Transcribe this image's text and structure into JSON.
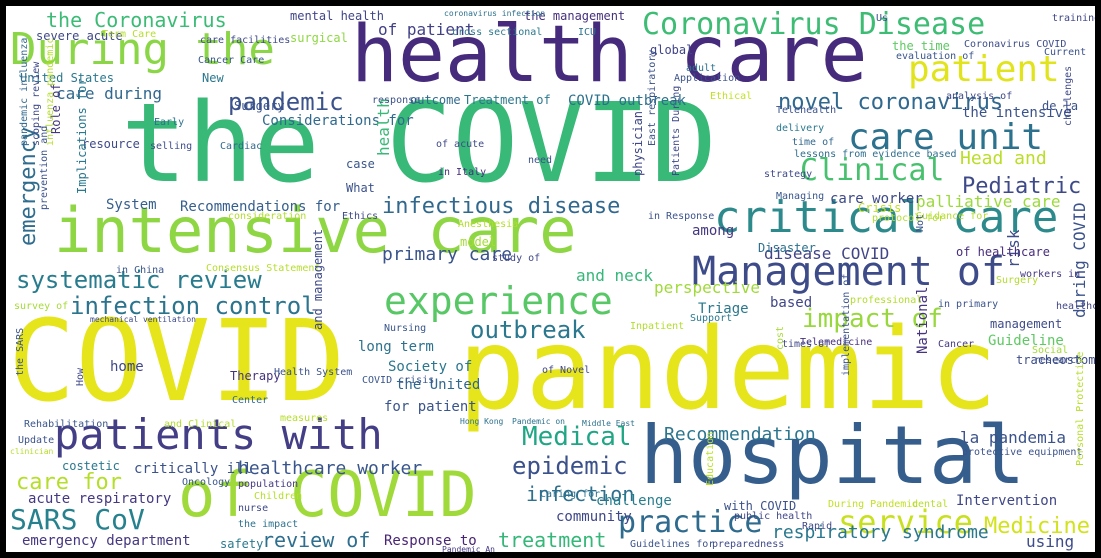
{
  "words": [
    {
      "text": "COVID",
      "color": "#e6e51b"
    },
    {
      "text": "pandemic",
      "color": "#e6e51b"
    },
    {
      "text": "the COVID",
      "color": "#38b977"
    },
    {
      "text": "health care",
      "color": "#462a7b"
    },
    {
      "text": "hospital",
      "color": "#355e8d"
    },
    {
      "text": "intensive care",
      "color": "#8ed643"
    },
    {
      "text": "of COVID",
      "color": "#9fda3a"
    },
    {
      "text": "critical care",
      "color": "#2d8a8c"
    },
    {
      "text": "Management of",
      "color": "#3d4b89"
    },
    {
      "text": "patients with",
      "color": "#433e85"
    },
    {
      "text": "During the",
      "color": "#8bd646"
    },
    {
      "text": "Coronavirus Disease",
      "color": "#3dbc74"
    },
    {
      "text": "patient",
      "color": "#e1e41c"
    },
    {
      "text": "care unit",
      "color": "#2c728e"
    },
    {
      "text": "experience",
      "color": "#58c765"
    },
    {
      "text": "systematic review",
      "color": "#287c8e"
    },
    {
      "text": "infection control",
      "color": "#2b748e"
    },
    {
      "text": "Clinical",
      "color": "#48c16e"
    },
    {
      "text": "infectious disease",
      "color": "#31688e"
    },
    {
      "text": "impact of",
      "color": "#98d83e"
    },
    {
      "text": "practice",
      "color": "#2f6b8e"
    },
    {
      "text": "service",
      "color": "#c8e020"
    },
    {
      "text": "SARS CoV",
      "color": "#26818e"
    },
    {
      "text": "outbreak",
      "color": "#2a778e"
    },
    {
      "text": "pandemic",
      "color": "#3b528b"
    },
    {
      "text": "novel coronavirus",
      "color": "#30688e"
    },
    {
      "text": "Medical",
      "color": "#21a685"
    },
    {
      "text": "epidemic",
      "color": "#3b518b"
    },
    {
      "text": "Pediatric",
      "color": "#3e4989"
    },
    {
      "text": "Head and",
      "color": "#bade28"
    },
    {
      "text": "palliative care",
      "color": "#9bd93c"
    },
    {
      "text": "emergency",
      "color": "#2f6c8e"
    },
    {
      "text": "care for",
      "color": "#b5de2b"
    },
    {
      "text": "healthcare worker",
      "color": "#39558c"
    },
    {
      "text": "Recommendation",
      "color": "#2b758e"
    },
    {
      "text": "Medicine",
      "color": "#d2e21b"
    },
    {
      "text": "infection",
      "color": "#2e6f8e"
    },
    {
      "text": "treatment",
      "color": "#35b779"
    },
    {
      "text": "review of",
      "color": "#2e6e8e"
    },
    {
      "text": "the Coronavirus",
      "color": "#3bbb75"
    },
    {
      "text": "respiratory syndrome",
      "color": "#2a788e"
    },
    {
      "text": "primary care",
      "color": "#3a538b"
    },
    {
      "text": "and neck",
      "color": "#35b779"
    },
    {
      "text": "disease COVID",
      "color": "#414487"
    },
    {
      "text": "care during",
      "color": "#31688e"
    },
    {
      "text": "perspective",
      "color": "#a0da39"
    },
    {
      "text": "Recommendations for",
      "color": "#355f8d"
    },
    {
      "text": "Considerations for",
      "color": "#306a8e"
    },
    {
      "text": "critically ill",
      "color": "#3a538b"
    },
    {
      "text": "emergency department",
      "color": "#453781"
    },
    {
      "text": "acute respiratory",
      "color": "#443983"
    },
    {
      "text": "Response to",
      "color": "#482475"
    },
    {
      "text": "community",
      "color": "#3f4788"
    },
    {
      "text": "challenge",
      "color": "#277f8e"
    },
    {
      "text": "Intervention",
      "color": "#3f4788"
    },
    {
      "text": "using",
      "color": "#3e4c8a"
    },
    {
      "text": "of patient",
      "color": "#424086"
    },
    {
      "text": "the intensive",
      "color": "#3a538b"
    },
    {
      "text": "United States",
      "color": "#2a788e"
    },
    {
      "text": "severe acute",
      "color": "#3f4889"
    },
    {
      "text": "Surgery",
      "color": "#3a548c"
    },
    {
      "text": "health",
      "color": "#39b977"
    },
    {
      "text": "What",
      "color": "#3b528b"
    },
    {
      "text": "case",
      "color": "#39568c"
    },
    {
      "text": "System",
      "color": "#355f8d"
    },
    {
      "text": "among",
      "color": "#453882"
    },
    {
      "text": "model",
      "color": "#a5db36"
    },
    {
      "text": "Disaster",
      "color": "#2c718e"
    },
    {
      "text": "Triage",
      "color": "#2a788e"
    },
    {
      "text": "based",
      "color": "#3f4788"
    },
    {
      "text": "la pandemia",
      "color": "#3b528b"
    },
    {
      "text": "Guideline",
      "color": "#5ec962"
    },
    {
      "text": "management",
      "color": "#3e4c8a"
    },
    {
      "text": "risk",
      "color": "#3e4c8a"
    },
    {
      "text": "during COVID",
      "color": "#3b528b"
    },
    {
      "text": "long term",
      "color": "#2c728e"
    },
    {
      "text": "Society of",
      "color": "#2a778e"
    },
    {
      "text": "the United",
      "color": "#31688e"
    },
    {
      "text": "for patient",
      "color": "#3a548c"
    },
    {
      "text": "home",
      "color": "#3f4788"
    },
    {
      "text": "Therapy",
      "color": "#463480"
    },
    {
      "text": "National",
      "color": "#463480"
    },
    {
      "text": "tracheostomy",
      "color": "#3e4c8a"
    },
    {
      "text": "COVID outbreak",
      "color": "#2d708e"
    },
    {
      "text": "Treatment of",
      "color": "#2a788e"
    },
    {
      "text": "outcome",
      "color": "#306a8e"
    },
    {
      "text": "global",
      "color": "#404588"
    },
    {
      "text": "the time",
      "color": "#5ec962"
    },
    {
      "text": "Coronavirus COVID",
      "color": "#3d4d8a"
    },
    {
      "text": "the management",
      "color": "#46307e"
    },
    {
      "text": "mental health",
      "color": "#404688"
    },
    {
      "text": "surgical",
      "color": "#8fd744"
    },
    {
      "text": "New",
      "color": "#2a788e"
    },
    {
      "text": "Early",
      "color": "#2d718e"
    },
    {
      "text": "Role of",
      "color": "#453781"
    },
    {
      "text": "resource",
      "color": "#3e4989"
    },
    {
      "text": "Implications for",
      "color": "#2a788e"
    },
    {
      "text": "Cardiac",
      "color": "#31688e"
    },
    {
      "text": "lessons from evidence based",
      "color": "#2e6e8e"
    },
    {
      "text": "delivery",
      "color": "#2a788e"
    },
    {
      "text": "time of",
      "color": "#31688e"
    },
    {
      "text": "Managing",
      "color": "#39568c"
    },
    {
      "text": "care worker",
      "color": "#3e4989"
    },
    {
      "text": "Crisis",
      "color": "#c2df23"
    },
    {
      "text": "in Response",
      "color": "#3b528b"
    },
    {
      "text": "of healthcare",
      "color": "#472d7b"
    },
    {
      "text": "workers in",
      "color": "#453882"
    },
    {
      "text": "in primary",
      "color": "#3a548c"
    },
    {
      "text": "healthcare",
      "color": "#3f4788"
    },
    {
      "text": "Telemedicine",
      "color": "#472f7d"
    },
    {
      "text": "Social",
      "color": "#a2da37"
    },
    {
      "text": "research",
      "color": "#3b528b"
    },
    {
      "text": "Hong Kong",
      "color": "#2c718e"
    },
    {
      "text": "Middle East",
      "color": "#2d718e"
    },
    {
      "text": "Pandemic on",
      "color": "#2c728e"
    },
    {
      "text": "Nursing",
      "color": "#39568c"
    },
    {
      "text": "Support",
      "color": "#2a788e"
    },
    {
      "text": "Inpatient",
      "color": "#b2dd2d"
    },
    {
      "text": "cost",
      "color": "#a5db36"
    },
    {
      "text": "times of",
      "color": "#3f4788"
    },
    {
      "text": "Cancer",
      "color": "#453882"
    },
    {
      "text": "dental",
      "color": "#b5de2b"
    },
    {
      "text": "protective equipment",
      "color": "#3b528b"
    },
    {
      "text": "Education",
      "color": "#b8de29"
    },
    {
      "text": "During Pandemic",
      "color": "#c2df23"
    },
    {
      "text": "with COVID",
      "color": "#3b528b"
    },
    {
      "text": "Rapid",
      "color": "#3f4788"
    },
    {
      "text": "preparedness",
      "color": "#3e4989"
    },
    {
      "text": "Guidelines for",
      "color": "#3b528b"
    },
    {
      "text": "Caring for",
      "color": "#2d718e"
    },
    {
      "text": "public health",
      "color": "#3f4788"
    },
    {
      "text": "Pandemic An",
      "color": "#453882"
    },
    {
      "text": "safety",
      "color": "#2a788e"
    },
    {
      "text": "the impact",
      "color": "#2c728e"
    },
    {
      "text": "nurse",
      "color": "#3e4989"
    },
    {
      "text": "Children",
      "color": "#b5de2b"
    },
    {
      "text": "population",
      "color": "#453882"
    },
    {
      "text": "Oncology",
      "color": "#39568c"
    },
    {
      "text": "costetic",
      "color": "#2a788e"
    },
    {
      "text": "Update",
      "color": "#3b528b"
    },
    {
      "text": "clinician",
      "color": "#b5de2b"
    },
    {
      "text": "Rehabilitation",
      "color": "#39568c"
    },
    {
      "text": "and Clinical",
      "color": "#b2dd2d"
    },
    {
      "text": "measures",
      "color": "#b5de2b"
    },
    {
      "text": "Center",
      "color": "#31688e"
    },
    {
      "text": "Health System",
      "color": "#3b528b"
    },
    {
      "text": "COVID crisis",
      "color": "#39568c"
    },
    {
      "text": "of Novel",
      "color": "#3f4788"
    },
    {
      "text": "Anesthesia",
      "color": "#b2dd2d"
    },
    {
      "text": "study of",
      "color": "#3f4788"
    },
    {
      "text": "in China",
      "color": "#39568c"
    },
    {
      "text": "Consensus Statement",
      "color": "#b5de2b"
    },
    {
      "text": "survey of",
      "color": "#a5db36"
    },
    {
      "text": "mechanical ventilation",
      "color": "#3e4989"
    },
    {
      "text": "in Italy",
      "color": "#46307e"
    },
    {
      "text": "of acute",
      "color": "#3e4989"
    },
    {
      "text": "need",
      "color": "#3b528b"
    },
    {
      "text": "Ethics",
      "color": "#3f4788"
    },
    {
      "text": "consideration",
      "color": "#b2dd2d"
    },
    {
      "text": "selling",
      "color": "#3e4c8a"
    },
    {
      "text": "Ethical",
      "color": "#c2df23"
    },
    {
      "text": "Application",
      "color": "#3b528b"
    },
    {
      "text": "adult",
      "color": "#2c718e"
    },
    {
      "text": "ICU",
      "color": "#2c728e"
    },
    {
      "text": "cross sectional",
      "color": "#2a788e"
    },
    {
      "text": "coronavirus infection",
      "color": "#2c718e"
    },
    {
      "text": "Us",
      "color": "#3b528b"
    },
    {
      "text": "training",
      "color": "#3f4788"
    },
    {
      "text": "Current",
      "color": "#3b528b"
    },
    {
      "text": "evaluation of",
      "color": "#39568c"
    },
    {
      "text": "analysis of",
      "color": "#3e4989"
    },
    {
      "text": "de la",
      "color": "#3b528b"
    },
    {
      "text": "Surgery",
      "color": "#b2dd2d"
    },
    {
      "text": "Term Care",
      "color": "#b5de2b"
    },
    {
      "text": "Cancer Care",
      "color": "#39568c"
    },
    {
      "text": "care facilities",
      "color": "#3e4989"
    },
    {
      "text": "response",
      "color": "#3b528b"
    },
    {
      "text": "Telehealth",
      "color": "#3b528b"
    },
    {
      "text": "professional",
      "color": "#b2dd2d"
    },
    {
      "text": "strategy",
      "color": "#3e4989"
    },
    {
      "text": "protocol for",
      "color": "#b2dd2d"
    },
    {
      "text": "Guidance for",
      "color": "#b5de2b"
    },
    {
      "text": "Not",
      "color": "#3b528b"
    },
    {
      "text": "pandemic influenza",
      "color": "#31688e"
    },
    {
      "text": "influenza pandemic",
      "color": "#b5de2b"
    },
    {
      "text": "scoping review",
      "color": "#3e4989"
    },
    {
      "text": "prevention and",
      "color": "#3b528b"
    },
    {
      "text": "and management",
      "color": "#3e4989"
    },
    {
      "text": "the SARS",
      "color": "#3b528b"
    },
    {
      "text": "How",
      "color": "#3f4788"
    },
    {
      "text": "implementation of",
      "color": "#3b528b"
    },
    {
      "text": "physician",
      "color": "#3f4788"
    },
    {
      "text": "Patients During",
      "color": "#3e4989"
    },
    {
      "text": "East respiratory",
      "color": "#3b528b"
    },
    {
      "text": "challenges",
      "color": "#3e4989"
    },
    {
      "text": "Personal Protective",
      "color": "#b5de2b"
    }
  ]
}
